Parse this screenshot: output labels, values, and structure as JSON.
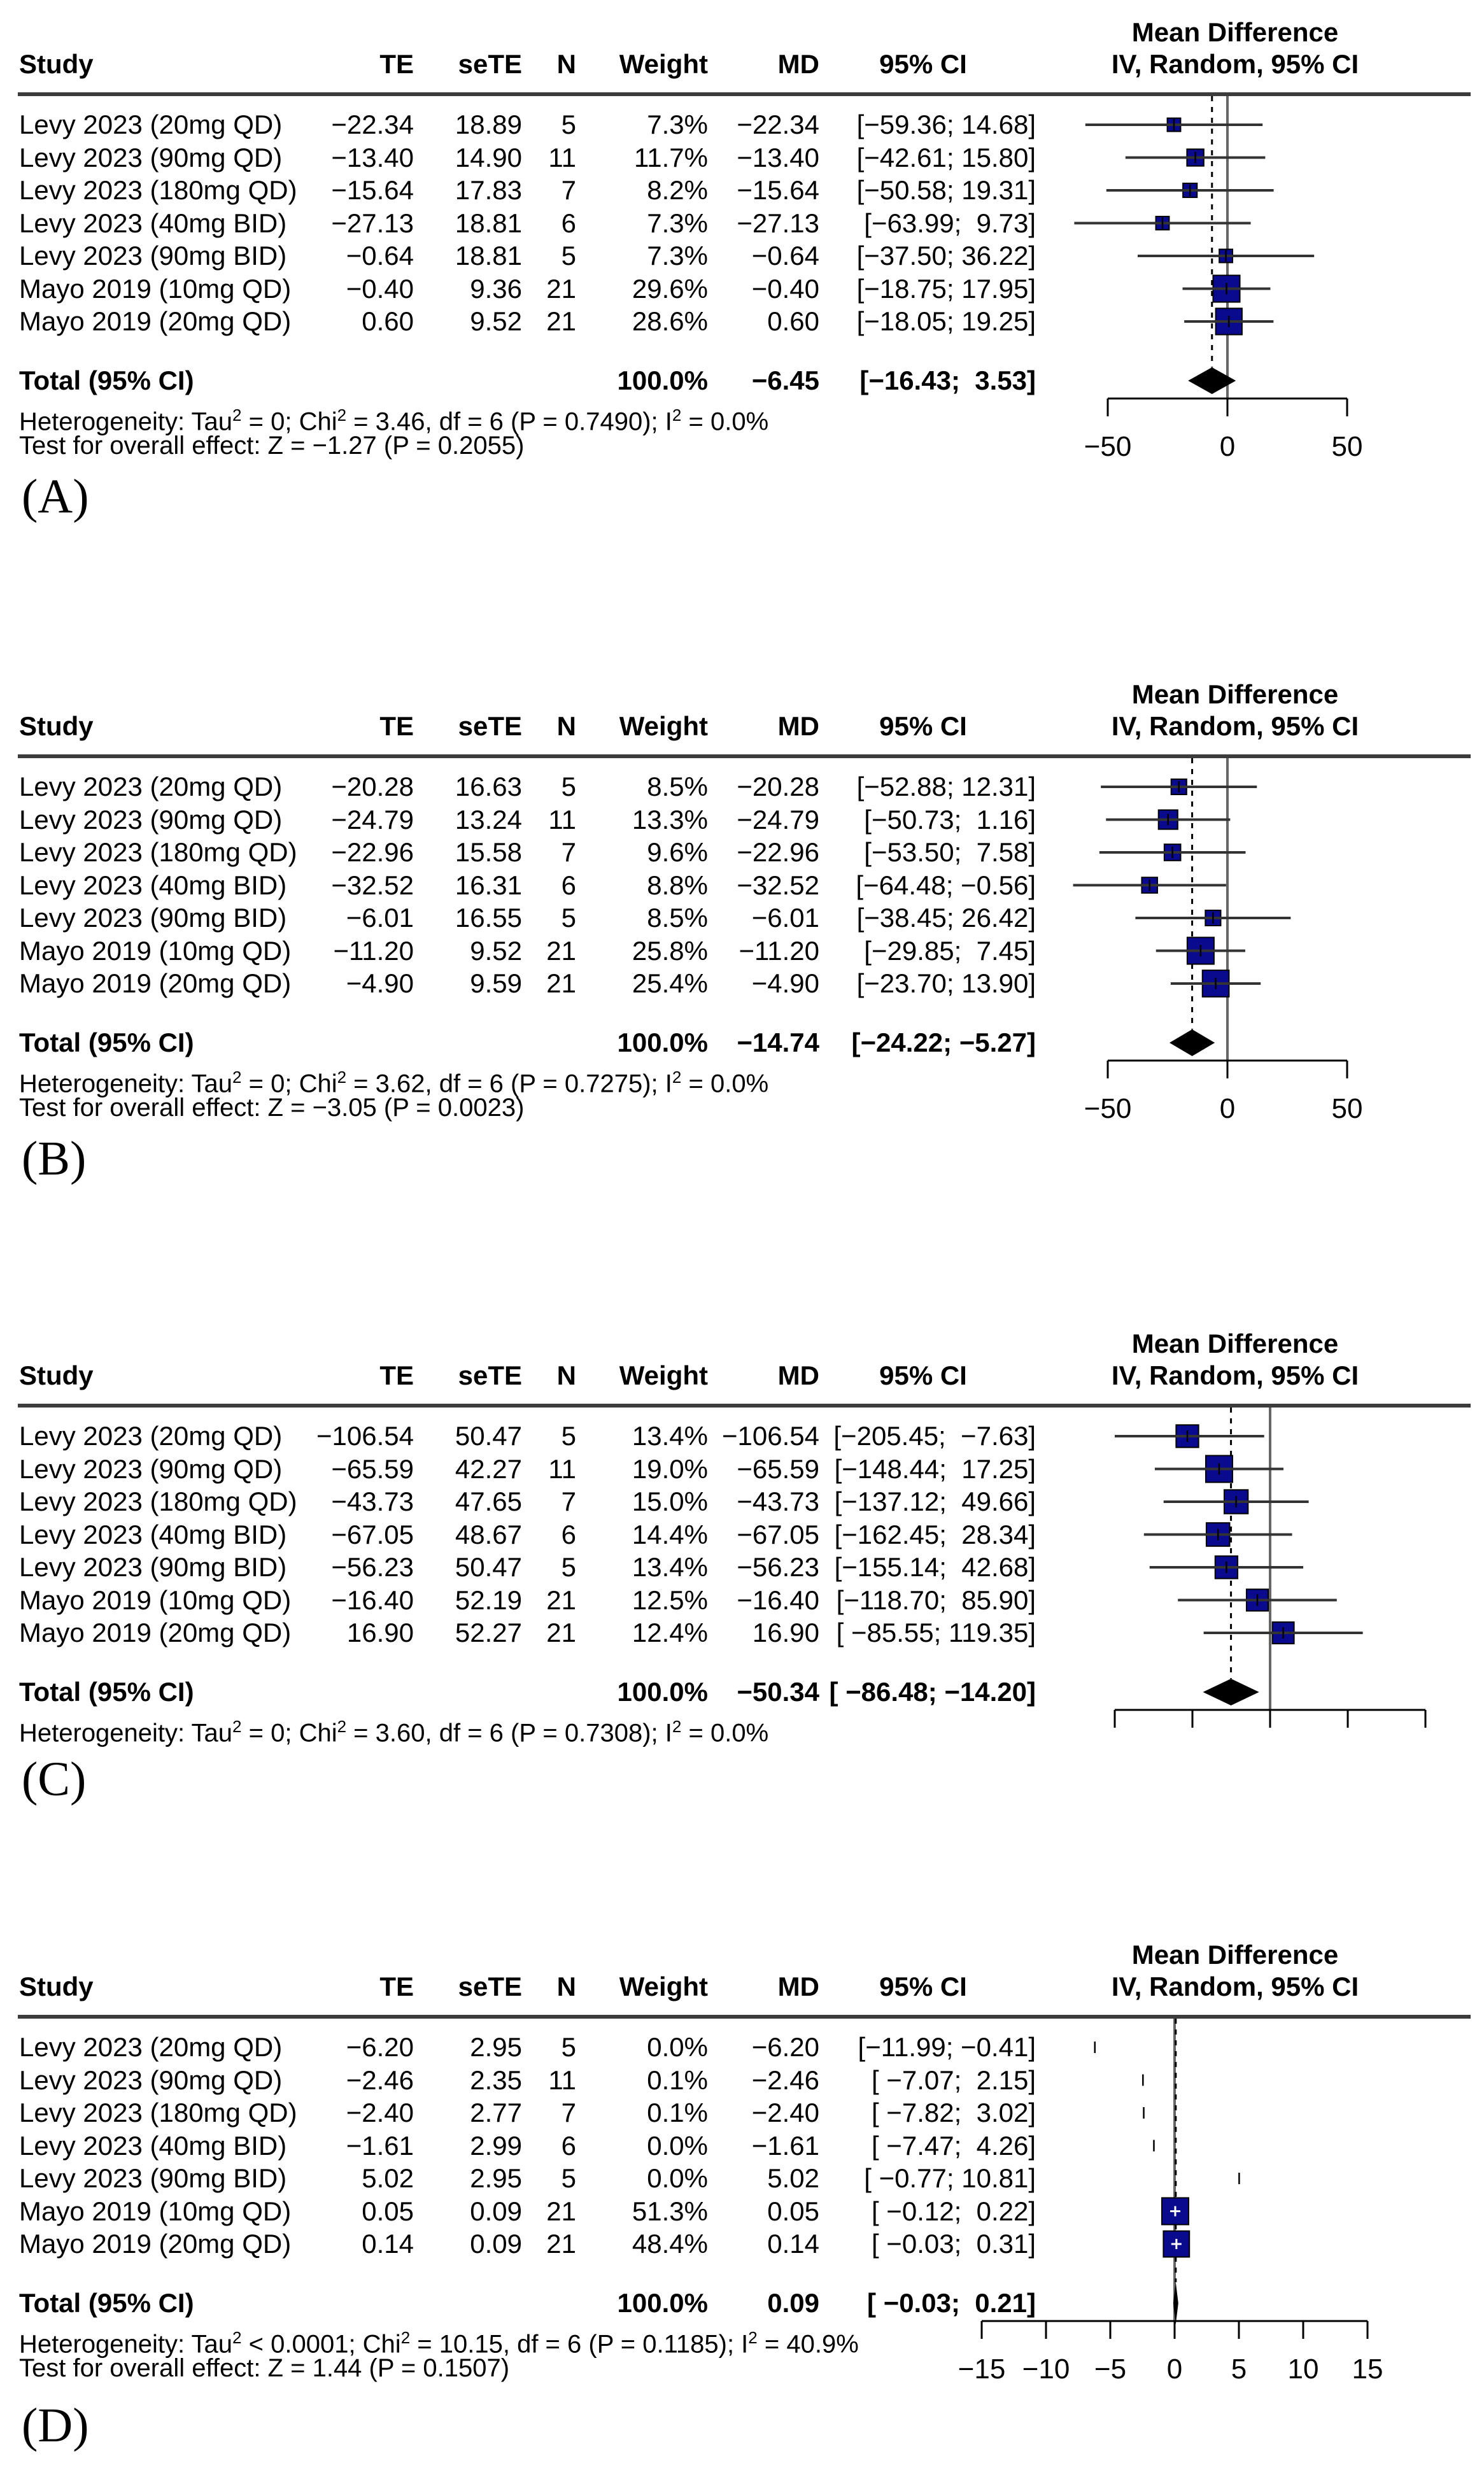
{
  "figure": {
    "background": "#ffffff",
    "square_color": "#0a0a8e",
    "diamond_color": "#000000",
    "line_color": "#333333",
    "zero_line_color": "#666666"
  },
  "columns": {
    "study": "Study",
    "te": "TE",
    "sete": "seTE",
    "n": "N",
    "weight": "Weight",
    "md": "MD",
    "ci": "95% CI",
    "plot_title_line1": "Mean Difference",
    "plot_title_line2": "IV, Random, 95% CI"
  },
  "chart_data": [
    {
      "id": "A",
      "type": "forest",
      "label": "(A)",
      "effect_measure": "Mean Difference",
      "model": "IV, Random, 95% CI",
      "axis": {
        "ticks": [
          -50,
          0,
          50
        ],
        "tick_labels": [
          "−50",
          "0",
          "50"
        ]
      },
      "studies": [
        {
          "study": "Levy 2023 (20mg QD)",
          "te": "−22.34",
          "sete": "18.89",
          "n": "5",
          "weight": "7.3%",
          "md": "−22.34",
          "ci": "[−59.36; 14.68]",
          "md_val": -22.34,
          "lo": -59.36,
          "hi": 14.68,
          "weight_val": 7.3
        },
        {
          "study": "Levy 2023 (90mg QD)",
          "te": "−13.40",
          "sete": "14.90",
          "n": "11",
          "weight": "11.7%",
          "md": "−13.40",
          "ci": "[−42.61; 15.80]",
          "md_val": -13.4,
          "lo": -42.61,
          "hi": 15.8,
          "weight_val": 11.7
        },
        {
          "study": "Levy 2023 (180mg QD)",
          "te": "−15.64",
          "sete": "17.83",
          "n": "7",
          "weight": "8.2%",
          "md": "−15.64",
          "ci": "[−50.58; 19.31]",
          "md_val": -15.64,
          "lo": -50.58,
          "hi": 19.31,
          "weight_val": 8.2
        },
        {
          "study": "Levy 2023 (40mg BID)",
          "te": "−27.13",
          "sete": "18.81",
          "n": "6",
          "weight": "7.3%",
          "md": "−27.13",
          "ci": "[−63.99;  9.73]",
          "md_val": -27.13,
          "lo": -63.99,
          "hi": 9.73,
          "weight_val": 7.3
        },
        {
          "study": "Levy 2023 (90mg BID)",
          "te": "−0.64",
          "sete": "18.81",
          "n": "5",
          "weight": "7.3%",
          "md": "−0.64",
          "ci": "[−37.50; 36.22]",
          "md_val": -0.64,
          "lo": -37.5,
          "hi": 36.22,
          "weight_val": 7.3
        },
        {
          "study": "Mayo 2019 (10mg QD)",
          "te": "−0.40",
          "sete": "9.36",
          "n": "21",
          "weight": "29.6%",
          "md": "−0.40",
          "ci": "[−18.75; 17.95]",
          "md_val": -0.4,
          "lo": -18.75,
          "hi": 17.95,
          "weight_val": 29.6
        },
        {
          "study": "Mayo 2019 (20mg QD)",
          "te": "0.60",
          "sete": "9.52",
          "n": "21",
          "weight": "28.6%",
          "md": "0.60",
          "ci": "[−18.05; 19.25]",
          "md_val": 0.6,
          "lo": -18.05,
          "hi": 19.25,
          "weight_val": 28.6
        }
      ],
      "total": {
        "label": "Total (95% CI)",
        "weight": "100.0%",
        "md": "−6.45",
        "ci": "[−16.43;  3.53]",
        "md_val": -6.45,
        "lo": -16.43,
        "hi": 3.53
      },
      "heterogeneity": [
        {
          "text": "Heterogeneity: Tau"
        },
        {
          "sup": "2"
        },
        {
          "text": " = 0; Chi"
        },
        {
          "sup": "2"
        },
        {
          "text": " = 3.46, df = 6 (P = 0.7490); I"
        },
        {
          "sup": "2"
        },
        {
          "text": " = 0.0%"
        }
      ],
      "overall_test": "Test for overall effect: Z = −1.27 (P = 0.2055)"
    },
    {
      "id": "B",
      "type": "forest",
      "label": "(B)",
      "effect_measure": "Mean Difference",
      "model": "IV, Random, 95% CI",
      "axis": {
        "ticks": [
          -50,
          0,
          50
        ],
        "tick_labels": [
          "−50",
          "0",
          "50"
        ]
      },
      "studies": [
        {
          "study": "Levy 2023 (20mg QD)",
          "te": "−20.28",
          "sete": "16.63",
          "n": "5",
          "weight": "8.5%",
          "md": "−20.28",
          "ci": "[−52.88; 12.31]",
          "md_val": -20.28,
          "lo": -52.88,
          "hi": 12.31,
          "weight_val": 8.5
        },
        {
          "study": "Levy 2023 (90mg QD)",
          "te": "−24.79",
          "sete": "13.24",
          "n": "11",
          "weight": "13.3%",
          "md": "−24.79",
          "ci": "[−50.73;  1.16]",
          "md_val": -24.79,
          "lo": -50.73,
          "hi": 1.16,
          "weight_val": 13.3
        },
        {
          "study": "Levy 2023 (180mg QD)",
          "te": "−22.96",
          "sete": "15.58",
          "n": "7",
          "weight": "9.6%",
          "md": "−22.96",
          "ci": "[−53.50;  7.58]",
          "md_val": -22.96,
          "lo": -53.5,
          "hi": 7.58,
          "weight_val": 9.6
        },
        {
          "study": "Levy 2023 (40mg BID)",
          "te": "−32.52",
          "sete": "16.31",
          "n": "6",
          "weight": "8.8%",
          "md": "−32.52",
          "ci": "[−64.48; −0.56]",
          "md_val": -32.52,
          "lo": -64.48,
          "hi": -0.56,
          "weight_val": 8.8
        },
        {
          "study": "Levy 2023 (90mg BID)",
          "te": "−6.01",
          "sete": "16.55",
          "n": "5",
          "weight": "8.5%",
          "md": "−6.01",
          "ci": "[−38.45; 26.42]",
          "md_val": -6.01,
          "lo": -38.45,
          "hi": 26.42,
          "weight_val": 8.5
        },
        {
          "study": "Mayo 2019 (10mg QD)",
          "te": "−11.20",
          "sete": "9.52",
          "n": "21",
          "weight": "25.8%",
          "md": "−11.20",
          "ci": "[−29.85;  7.45]",
          "md_val": -11.2,
          "lo": -29.85,
          "hi": 7.45,
          "weight_val": 25.8
        },
        {
          "study": "Mayo 2019 (20mg QD)",
          "te": "−4.90",
          "sete": "9.59",
          "n": "21",
          "weight": "25.4%",
          "md": "−4.90",
          "ci": "[−23.70; 13.90]",
          "md_val": -4.9,
          "lo": -23.7,
          "hi": 13.9,
          "weight_val": 25.4
        }
      ],
      "total": {
        "label": "Total (95% CI)",
        "weight": "100.0%",
        "md": "−14.74",
        "ci": "[−24.22; −5.27]",
        "md_val": -14.74,
        "lo": -24.22,
        "hi": -5.27
      },
      "heterogeneity": [
        {
          "text": "Heterogeneity: Tau"
        },
        {
          "sup": "2"
        },
        {
          "text": " = 0; Chi"
        },
        {
          "sup": "2"
        },
        {
          "text": " = 3.62, df = 6 (P = 0.7275); I"
        },
        {
          "sup": "2"
        },
        {
          "text": " = 0.0%"
        }
      ],
      "overall_test": "Test for overall effect: Z = −3.05 (P = 0.0023)"
    },
    {
      "id": "C",
      "type": "forest",
      "label": "(C)",
      "effect_measure": "Mean Difference",
      "model": "IV, Random, 95% CI",
      "axis": {
        "ticks": [
          -200,
          -100,
          0,
          100,
          200
        ],
        "tick_labels": []
      },
      "studies": [
        {
          "study": "Levy 2023 (20mg QD)",
          "te": "−106.54",
          "sete": "50.47",
          "n": "5",
          "weight": "13.4%",
          "md": "−106.54",
          "ci": "[−205.45;  −7.63]",
          "md_val": -106.54,
          "lo": -205.45,
          "hi": -7.63,
          "weight_val": 13.4
        },
        {
          "study": "Levy 2023 (90mg QD)",
          "te": "−65.59",
          "sete": "42.27",
          "n": "11",
          "weight": "19.0%",
          "md": "−65.59",
          "ci": "[−148.44;  17.25]",
          "md_val": -65.59,
          "lo": -148.44,
          "hi": 17.25,
          "weight_val": 19.0
        },
        {
          "study": "Levy 2023 (180mg QD)",
          "te": "−43.73",
          "sete": "47.65",
          "n": "7",
          "weight": "15.0%",
          "md": "−43.73",
          "ci": "[−137.12;  49.66]",
          "md_val": -43.73,
          "lo": -137.12,
          "hi": 49.66,
          "weight_val": 15.0
        },
        {
          "study": "Levy 2023 (40mg BID)",
          "te": "−67.05",
          "sete": "48.67",
          "n": "6",
          "weight": "14.4%",
          "md": "−67.05",
          "ci": "[−162.45;  28.34]",
          "md_val": -67.05,
          "lo": -162.45,
          "hi": 28.34,
          "weight_val": 14.4
        },
        {
          "study": "Levy 2023 (90mg BID)",
          "te": "−56.23",
          "sete": "50.47",
          "n": "5",
          "weight": "13.4%",
          "md": "−56.23",
          "ci": "[−155.14;  42.68]",
          "md_val": -56.23,
          "lo": -155.14,
          "hi": 42.68,
          "weight_val": 13.4
        },
        {
          "study": "Mayo 2019 (10mg QD)",
          "te": "−16.40",
          "sete": "52.19",
          "n": "21",
          "weight": "12.5%",
          "md": "−16.40",
          "ci": "[−118.70;  85.90]",
          "md_val": -16.4,
          "lo": -118.7,
          "hi": 85.9,
          "weight_val": 12.5
        },
        {
          "study": "Mayo 2019 (20mg QD)",
          "te": "16.90",
          "sete": "52.27",
          "n": "21",
          "weight": "12.4%",
          "md": "16.90",
          "ci": "[ −85.55; 119.35]",
          "md_val": 16.9,
          "lo": -85.55,
          "hi": 119.35,
          "weight_val": 12.4
        }
      ],
      "total": {
        "label": "Total (95% CI)",
        "weight": "100.0%",
        "md": "−50.34",
        "ci": "[ −86.48; −14.20]",
        "md_val": -50.34,
        "lo": -86.48,
        "hi": -14.2
      },
      "heterogeneity": [
        {
          "text": "Heterogeneity: Tau"
        },
        {
          "sup": "2"
        },
        {
          "text": " = 0; Chi"
        },
        {
          "sup": "2"
        },
        {
          "text": " = 3.60, df = 6 (P = 0.7308); I"
        },
        {
          "sup": "2"
        },
        {
          "text": " = 0.0%"
        }
      ],
      "overall_test": null
    },
    {
      "id": "D",
      "type": "forest",
      "label": "(D)",
      "effect_measure": "Mean Difference",
      "model": "IV, Random, 95% CI",
      "axis": {
        "ticks": [
          -15,
          -10,
          -5,
          0,
          5,
          10,
          15
        ],
        "tick_labels": [
          "−15",
          "−10",
          "−5",
          "0",
          "5",
          "10",
          "15"
        ]
      },
      "studies": [
        {
          "study": "Levy 2023 (20mg QD)",
          "te": "−6.20",
          "sete": "2.95",
          "n": "5",
          "weight": "0.0%",
          "md": "−6.20",
          "ci": "[−11.99; −0.41]",
          "md_val": -6.2,
          "lo": -11.99,
          "hi": -0.41,
          "weight_val": 0.0
        },
        {
          "study": "Levy 2023 (90mg QD)",
          "te": "−2.46",
          "sete": "2.35",
          "n": "11",
          "weight": "0.1%",
          "md": "−2.46",
          "ci": "[ −7.07;  2.15]",
          "md_val": -2.46,
          "lo": -7.07,
          "hi": 2.15,
          "weight_val": 0.1
        },
        {
          "study": "Levy 2023 (180mg QD)",
          "te": "−2.40",
          "sete": "2.77",
          "n": "7",
          "weight": "0.1%",
          "md": "−2.40",
          "ci": "[ −7.82;  3.02]",
          "md_val": -2.4,
          "lo": -7.82,
          "hi": 3.02,
          "weight_val": 0.1
        },
        {
          "study": "Levy 2023 (40mg BID)",
          "te": "−1.61",
          "sete": "2.99",
          "n": "6",
          "weight": "0.0%",
          "md": "−1.61",
          "ci": "[ −7.47;  4.26]",
          "md_val": -1.61,
          "lo": -7.47,
          "hi": 4.26,
          "weight_val": 0.0
        },
        {
          "study": "Levy 2023 (90mg BID)",
          "te": "5.02",
          "sete": "2.95",
          "n": "5",
          "weight": "0.0%",
          "md": "5.02",
          "ci": "[ −0.77; 10.81]",
          "md_val": 5.02,
          "lo": -0.77,
          "hi": 10.81,
          "weight_val": 0.0
        },
        {
          "study": "Mayo 2019 (10mg QD)",
          "te": "0.05",
          "sete": "0.09",
          "n": "21",
          "weight": "51.3%",
          "md": "0.05",
          "ci": "[ −0.12;  0.22]",
          "md_val": 0.05,
          "lo": -0.12,
          "hi": 0.22,
          "weight_val": 51.3
        },
        {
          "study": "Mayo 2019 (20mg QD)",
          "te": "0.14",
          "sete": "0.09",
          "n": "21",
          "weight": "48.4%",
          "md": "0.14",
          "ci": "[ −0.03;  0.31]",
          "md_val": 0.14,
          "lo": -0.03,
          "hi": 0.31,
          "weight_val": 48.4
        }
      ],
      "total": {
        "label": "Total (95% CI)",
        "weight": "100.0%",
        "md": "0.09",
        "ci": "[ −0.03;  0.21]",
        "md_val": 0.09,
        "lo": -0.03,
        "hi": 0.21
      },
      "heterogeneity": [
        {
          "text": "Heterogeneity: Tau"
        },
        {
          "sup": "2"
        },
        {
          "text": " < 0.0001; Chi"
        },
        {
          "sup": "2"
        },
        {
          "text": " = 10.15, df = 6 (P = 0.1185); I"
        },
        {
          "sup": "2"
        },
        {
          "text": " = 40.9%"
        }
      ],
      "overall_test": "Test for overall effect: Z = 1.44 (P = 0.1507)"
    }
  ]
}
